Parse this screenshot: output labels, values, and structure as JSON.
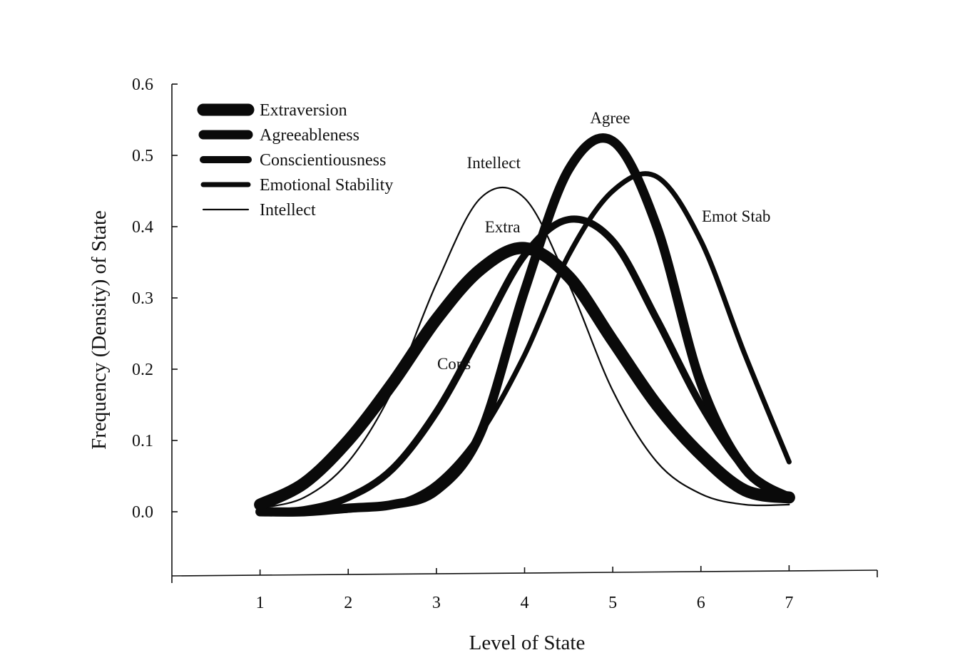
{
  "chart_data": {
    "type": "line",
    "title": "",
    "xlabel": "Level of State",
    "ylabel": "Frequency (Density) of State",
    "xlim": [
      0,
      8
    ],
    "ylim": [
      -0.09,
      0.6
    ],
    "x_ticks": [
      1,
      2,
      3,
      4,
      5,
      6,
      7
    ],
    "y_ticks": [
      0.0,
      0.1,
      0.2,
      0.3,
      0.4,
      0.5,
      0.6
    ],
    "x_tick_labels": [
      "1",
      "2",
      "3",
      "4",
      "5",
      "6",
      "7"
    ],
    "y_tick_labels": [
      "0.0",
      "0.1",
      "0.2",
      "0.3",
      "0.4",
      "0.5",
      "0.6"
    ],
    "grid": false,
    "legend_position": "top-left",
    "series": [
      {
        "name": "Extraversion",
        "line_weight": "heaviest",
        "x": [
          1,
          1.5,
          2,
          2.5,
          3,
          3.5,
          4,
          4.5,
          5,
          5.5,
          6,
          6.5,
          7
        ],
        "y": [
          0.01,
          0.04,
          0.1,
          0.18,
          0.27,
          0.34,
          0.37,
          0.33,
          0.24,
          0.15,
          0.08,
          0.03,
          0.02
        ]
      },
      {
        "name": "Agreeableness",
        "line_weight": "heavy",
        "x": [
          1,
          1.5,
          2,
          2.5,
          3,
          3.5,
          4,
          4.5,
          5,
          5.5,
          6,
          6.5,
          7
        ],
        "y": [
          0.0,
          0.0,
          0.005,
          0.01,
          0.03,
          0.11,
          0.31,
          0.48,
          0.52,
          0.4,
          0.18,
          0.06,
          0.02
        ]
      },
      {
        "name": "Conscientiousness",
        "line_weight": "medium",
        "x": [
          1,
          1.5,
          2,
          2.5,
          3,
          3.5,
          4,
          4.5,
          5,
          5.5,
          6,
          6.5,
          7
        ],
        "y": [
          0.0,
          0.003,
          0.02,
          0.06,
          0.14,
          0.25,
          0.36,
          0.41,
          0.38,
          0.27,
          0.15,
          0.06,
          0.02
        ]
      },
      {
        "name": "Emotional Stability",
        "line_weight": "light",
        "x": [
          1,
          1.5,
          2,
          2.5,
          3,
          3.5,
          4,
          4.5,
          5,
          5.5,
          6,
          6.5,
          7
        ],
        "y": [
          0.0,
          0.0,
          0.002,
          0.01,
          0.04,
          0.11,
          0.22,
          0.36,
          0.45,
          0.47,
          0.38,
          0.22,
          0.07
        ]
      },
      {
        "name": "Intellect",
        "line_weight": "thinnest",
        "x": [
          1,
          1.5,
          2,
          2.5,
          3,
          3.5,
          4,
          4.5,
          5,
          5.5,
          6,
          6.5,
          7
        ],
        "y": [
          0.005,
          0.02,
          0.07,
          0.17,
          0.32,
          0.44,
          0.44,
          0.32,
          0.17,
          0.07,
          0.025,
          0.01,
          0.01
        ]
      }
    ],
    "annotations": [
      {
        "text": "Agree",
        "x": 4.97,
        "y": 0.545
      },
      {
        "text": "Intellect",
        "x": 3.65,
        "y": 0.482
      },
      {
        "text": "Emot Stab",
        "x": 6.4,
        "y": 0.407
      },
      {
        "text": "Extra",
        "x": 3.75,
        "y": 0.392
      },
      {
        "text": "Cons",
        "x": 3.2,
        "y": 0.2
      }
    ]
  }
}
